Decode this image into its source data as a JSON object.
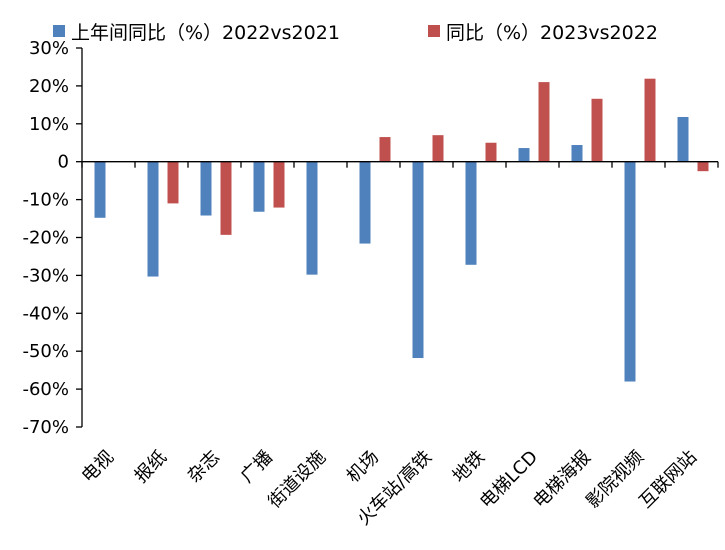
{
  "chart_data": {
    "type": "bar",
    "categories": [
      "电视",
      "报纸",
      "杂志",
      "广播",
      "街道设施",
      "机场",
      "火车站/高铁",
      "地铁",
      "电梯LCD",
      "电梯海报",
      "影院视频",
      "互联网站"
    ],
    "series": [
      {
        "name": "上年间同比（%）2022vs2021",
        "color": "#4F81BD",
        "values": [
          -14.8,
          -30.3,
          -14.2,
          -13.2,
          -29.8,
          -21.6,
          -51.8,
          -27.2,
          3.6,
          4.4,
          -58.0,
          11.8
        ]
      },
      {
        "name": "同比（%）2023vs2022",
        "color": "#C0504D",
        "values": [
          null,
          -11.0,
          -19.3,
          -12.1,
          null,
          6.5,
          7.0,
          5.0,
          21.0,
          16.6,
          21.9,
          -2.5
        ]
      }
    ],
    "ylim": [
      -70,
      30
    ],
    "yticks": [
      30,
      20,
      10,
      0,
      -10,
      -20,
      -30,
      -40,
      -50,
      -60,
      -70
    ],
    "ytick_labels": [
      "30%",
      "20%",
      "10%",
      "0",
      "-10%",
      "-20%",
      "-30%",
      "-40%",
      "-50%",
      "-60%",
      "-70%"
    ],
    "title": "",
    "xlabel": "",
    "ylabel": "",
    "legend_position": "top",
    "grid": false
  }
}
